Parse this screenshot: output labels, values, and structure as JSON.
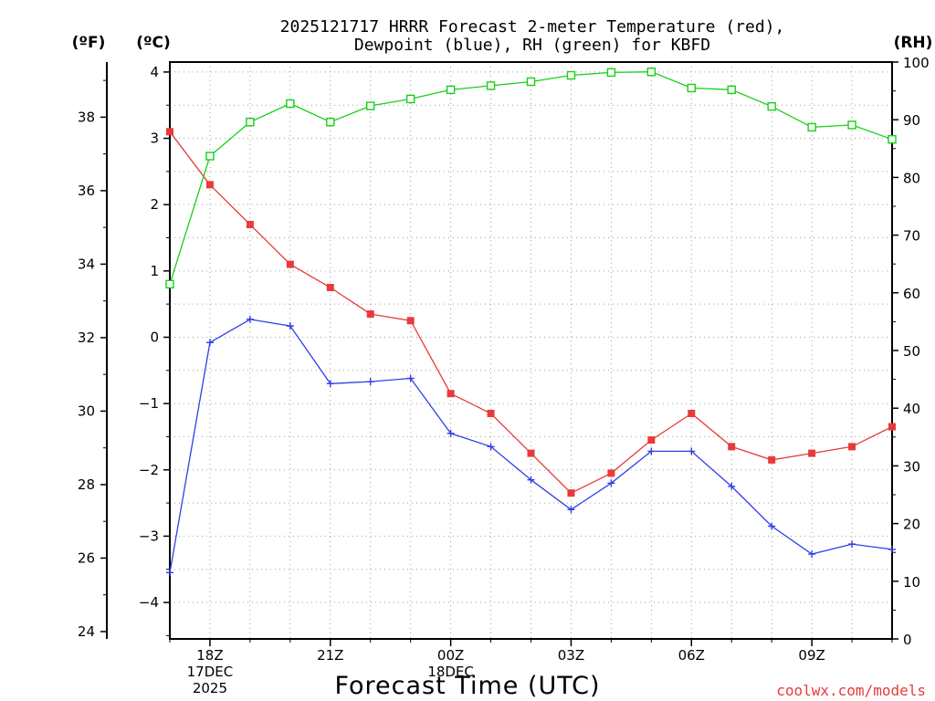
{
  "chart_data": {
    "type": "line",
    "title_line1": "2025121717 HRRR Forecast 2-meter Temperature (red),",
    "title_line2": "Dewpoint (blue), RH (green) for KBFD",
    "xlabel": "Forecast Time (UTC)",
    "credit": "coolwx.com/models",
    "colors": {
      "temperature": "#e83a3a",
      "dewpoint": "#2f3fe8",
      "rh": "#18d018"
    },
    "units": {
      "fahrenheit": "(ºF)",
      "celsius": "(ºC)",
      "rh": "(RH)"
    },
    "x_hours": [
      17,
      18,
      19,
      20,
      21,
      22,
      23,
      24,
      25,
      26,
      27,
      28,
      29,
      30,
      31,
      32,
      33,
      34,
      35
    ],
    "x_range": [
      17,
      35
    ],
    "x_ticks": [
      {
        "hour": 18,
        "label": "18Z",
        "date1": "17DEC",
        "date2": "2025"
      },
      {
        "hour": 21,
        "label": "21Z"
      },
      {
        "hour": 24,
        "label": "00Z",
        "date1": "18DEC"
      },
      {
        "hour": 27,
        "label": "03Z"
      },
      {
        "hour": 30,
        "label": "06Z"
      },
      {
        "hour": 33,
        "label": "09Z"
      }
    ],
    "celsius_range": [
      -4.55,
      4.15
    ],
    "celsius_ticks": [
      "-4",
      "-3",
      "-2",
      "-1",
      "0",
      "1",
      "2",
      "3",
      "4"
    ],
    "fahrenheit_range": [
      23.8,
      39.5
    ],
    "fahrenheit_ticks": [
      "24",
      "26",
      "28",
      "30",
      "32",
      "34",
      "36",
      "38"
    ],
    "rh_range": [
      0,
      100
    ],
    "rh_ticks": [
      "0",
      "10",
      "20",
      "30",
      "40",
      "50",
      "60",
      "70",
      "80",
      "90",
      "100"
    ],
    "series": [
      {
        "name": "Temperature (°C)",
        "key": "temperature",
        "values": [
          3.1,
          2.3,
          1.7,
          1.1,
          0.75,
          0.35,
          0.25,
          -0.85,
          -1.15,
          -1.75,
          -2.35,
          -2.05,
          -1.55,
          -1.15,
          -1.65,
          -1.85,
          -1.75,
          -1.65,
          -1.35
        ]
      },
      {
        "name": "Dewpoint (°C)",
        "key": "dewpoint",
        "values": [
          -3.55,
          -0.08,
          0.27,
          0.17,
          -0.7,
          -0.67,
          -0.62,
          -1.45,
          -1.65,
          -2.15,
          -2.6,
          -2.2,
          -1.72,
          -1.72,
          -2.25,
          -2.85,
          -3.27,
          -3.12,
          -3.2
        ]
      },
      {
        "name": "RH (%)",
        "key": "rh",
        "values": [
          61.5,
          83.7,
          89.6,
          92.8,
          89.6,
          92.4,
          93.6,
          95.2,
          95.9,
          96.6,
          97.7,
          98.2,
          98.3,
          95.5,
          95.2,
          92.3,
          88.7,
          89.1,
          86.6
        ]
      }
    ]
  }
}
